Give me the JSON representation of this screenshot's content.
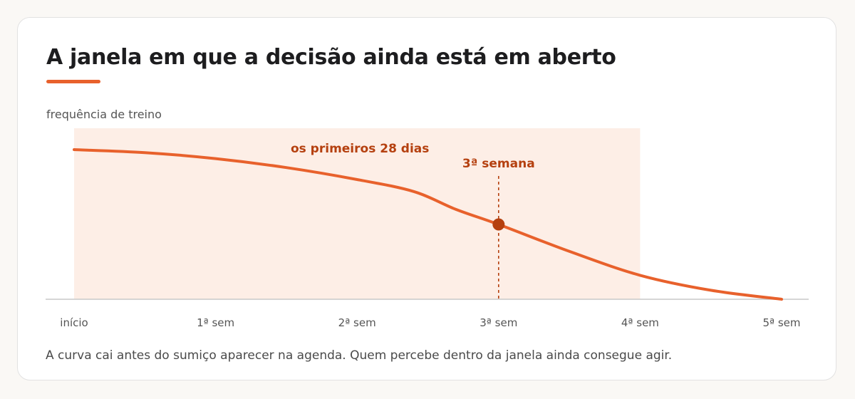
{
  "title": "A janela em que a decisão ainda está em aberto",
  "caption": "A curva cai antes do sumiço aparecer na agenda. Quem percebe dentro da janela ainda consegue agir.",
  "colors": {
    "accent": "#e8612c",
    "highlight": "#b5400f",
    "window_fill": "#fdeee6",
    "axis": "#c8c8c8"
  },
  "chart_data": {
    "type": "line",
    "ylabel": "frequência de treino",
    "xlabel": "",
    "x_unit": "semanas",
    "categories": [
      "início",
      "1ª sem",
      "2ª sem",
      "3ª sem",
      "4ª sem",
      "5ª sem"
    ],
    "xlim": [
      0,
      5
    ],
    "ylim": [
      0,
      1
    ],
    "series": [
      {
        "x": [
          0,
          0.5,
          1,
          1.5,
          2,
          2.4,
          2.7,
          3,
          3.5,
          4,
          4.5,
          5
        ],
        "values": [
          1.0,
          0.98,
          0.94,
          0.88,
          0.8,
          0.72,
          0.6,
          0.5,
          0.32,
          0.16,
          0.06,
          0.0
        ]
      }
    ],
    "shaded_window": {
      "x_start": 0,
      "x_end": 4,
      "label": "os primeiros 28 dias"
    },
    "marker": {
      "x": 3,
      "y": 0.5,
      "label": "3ª semana"
    },
    "grid": false
  }
}
